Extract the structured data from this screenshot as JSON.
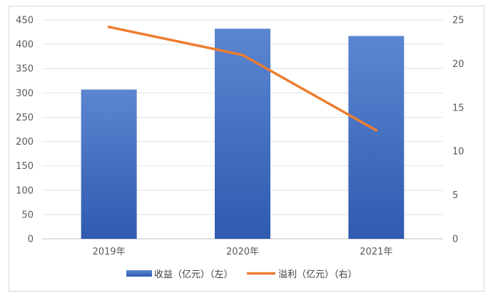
{
  "chart_data": {
    "type": "bar+line",
    "categories": [
      "2019年",
      "2020年",
      "2021年"
    ],
    "series": [
      {
        "name": "收益（亿元）（左）",
        "type": "bar",
        "axis": "left",
        "values": [
          307,
          432,
          417
        ],
        "color": "#4472C4"
      },
      {
        "name": "溢利（亿元）（右）",
        "type": "line",
        "axis": "right",
        "values": [
          24.2,
          21.0,
          12.4
        ],
        "color": "#ED7D31"
      }
    ],
    "y_left": {
      "min": 0,
      "max": 450,
      "step": 50,
      "ticks": [
        "0",
        "50",
        "100",
        "150",
        "200",
        "250",
        "300",
        "350",
        "400",
        "450"
      ]
    },
    "y_right": {
      "min": 0,
      "max": 25,
      "step": 5,
      "ticks": [
        "0",
        "5",
        "10",
        "15",
        "20",
        "25"
      ]
    },
    "grid": true,
    "legend_position": "bottom"
  }
}
